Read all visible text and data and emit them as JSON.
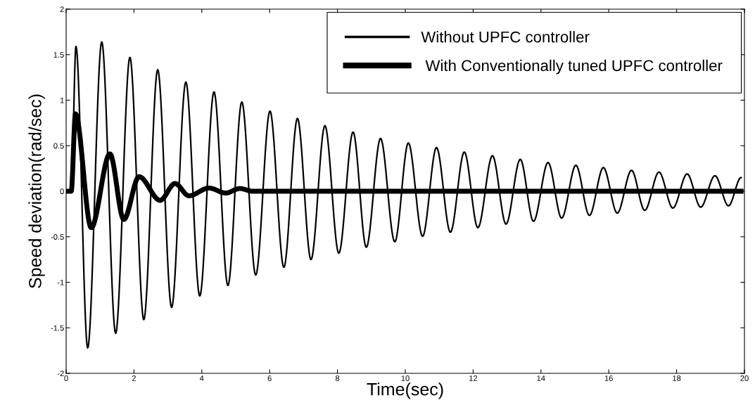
{
  "chart_data": {
    "type": "line",
    "xlabel": "Time(sec)",
    "ylabel": "Speed deviation(rad/sec)",
    "xlim": [
      0,
      20
    ],
    "ylim": [
      -2,
      2
    ],
    "xticks": [
      0,
      2,
      4,
      6,
      8,
      10,
      12,
      14,
      16,
      18,
      20
    ],
    "yticks": [
      -2,
      -1.5,
      -1,
      -0.5,
      0,
      0.5,
      1,
      1.5,
      2
    ],
    "grid": false,
    "legend": "top right",
    "series": [
      {
        "name": "Without UPFC controller",
        "color": "#000000",
        "x": [
          0,
          0.15,
          0.29,
          0.635,
          1.05,
          1.46,
          1.88,
          2.29,
          2.7,
          3.11,
          3.53,
          3.94,
          4.36,
          4.77,
          5.18,
          5.59,
          6.01,
          6.42,
          6.82,
          7.22,
          7.63,
          8.04,
          8.46,
          8.85,
          9.27,
          9.69,
          10.09,
          10.51,
          10.92,
          11.33,
          11.74,
          12.14,
          12.57,
          12.97,
          13.39,
          13.78,
          14.21,
          14.61,
          15.03,
          15.43,
          15.84,
          16.25,
          16.67,
          17.06,
          17.48,
          17.89,
          18.31,
          18.71,
          19.13,
          19.53,
          19.9
        ],
        "values": [
          0,
          0,
          1.59,
          -1.72,
          1.64,
          -1.56,
          1.47,
          -1.41,
          1.335,
          -1.275,
          1.2,
          -1.15,
          1.09,
          -1.035,
          0.98,
          -0.92,
          0.88,
          -0.835,
          0.8,
          -0.75,
          0.72,
          -0.68,
          0.65,
          -0.615,
          0.58,
          -0.555,
          0.53,
          -0.495,
          0.48,
          -0.45,
          0.43,
          -0.4,
          0.39,
          -0.36,
          0.35,
          -0.33,
          0.315,
          -0.295,
          0.285,
          -0.265,
          0.26,
          -0.24,
          0.23,
          -0.21,
          0.21,
          -0.185,
          0.19,
          -0.175,
          0.17,
          -0.16,
          0.15
        ]
      },
      {
        "name": " With Conventionally tuned UPFC controller",
        "color": "#000000",
        "x": [
          0,
          0.15,
          0.275,
          0.74,
          1.29,
          1.7,
          2.15,
          2.77,
          3.21,
          3.62,
          4.21,
          4.71,
          5.12,
          5.5,
          19.9
        ],
        "values": [
          0,
          0,
          0.85,
          -0.4,
          0.41,
          -0.31,
          0.16,
          -0.1,
          0.085,
          -0.05,
          0.035,
          -0.02,
          0.03,
          0,
          0
        ]
      }
    ]
  }
}
